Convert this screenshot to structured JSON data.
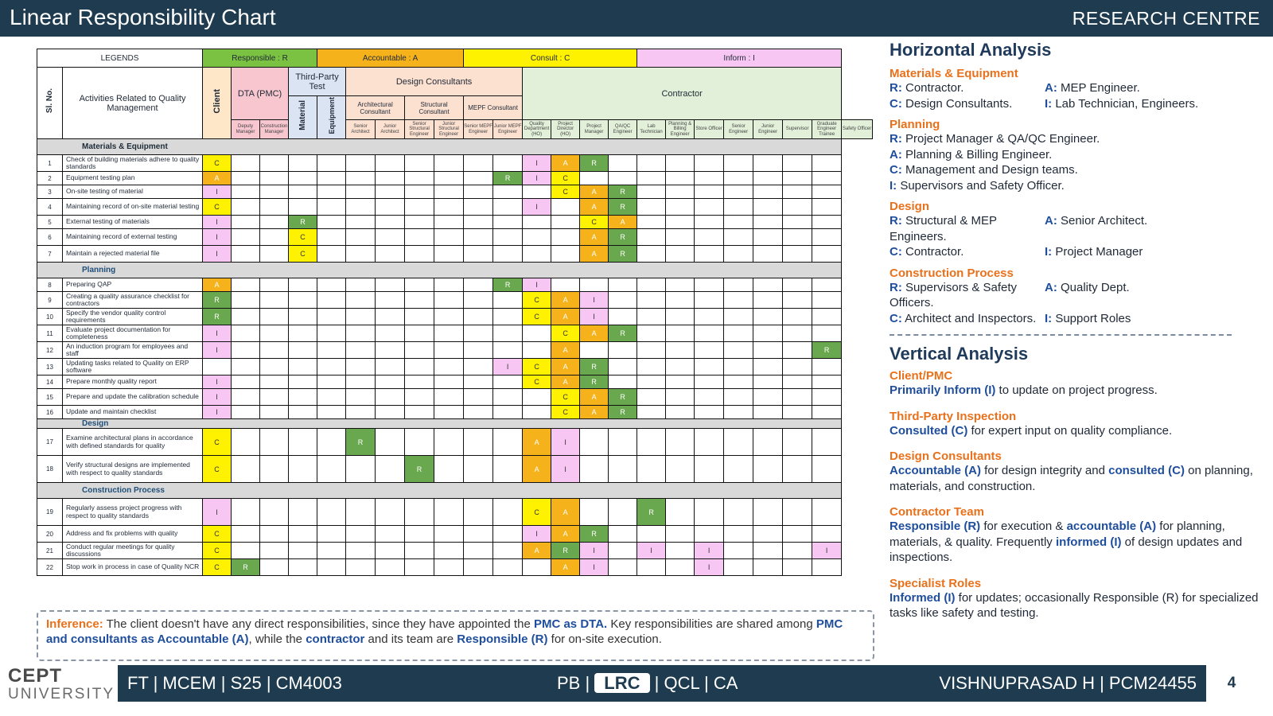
{
  "header": {
    "title": "Linear Responsibility Chart",
    "org": "RESEARCH CENTRE"
  },
  "legends": {
    "title": "LEGENDS",
    "r": "Responsible : R",
    "a": "Accountable : A",
    "c": "Consult : C",
    "i": "Inform : I"
  },
  "table_head": {
    "sl": "Sl. No.",
    "activities": "Activities Related to Quality Management",
    "client": "Client",
    "dta": "DTA (PMC)",
    "tpi": "Third-Party Test",
    "dc": "Design Consultants",
    "contractor": "Contractor",
    "tpi_material": "Material",
    "tpi_equipment": "Equipment",
    "arch": "Architectural Consultant",
    "struct": "Structural Consultant",
    "mep": "MEPF Consultant",
    "roles": [
      "Deputy Manager",
      "Construction Manager",
      "Senior Architect",
      "Junior Architect",
      "Senior Structural Engineer",
      "Junior Structural Engineer",
      "Senior MEPF Engineer",
      "Junior MEPF Engineer",
      "Quality Department (HO)",
      "Project Director (HO)",
      "Project Manager",
      "QA/QC Engineer",
      "Lab Technician",
      "Planning & Billing Engineer",
      "Store Officer",
      "Senior Engineer",
      "Junior Engineer",
      "Supervisor",
      "Graduate Engineer Trainee",
      "Safety Officer"
    ]
  },
  "rows": [
    {
      "type": "section",
      "label": "Materials & Equipment"
    },
    {
      "type": "row",
      "no": "1",
      "act": "Check of building materials adhere to quality standards",
      "cells": {
        "1": "C",
        "12": "I",
        "13": "A",
        "14": "R"
      }
    },
    {
      "type": "row",
      "no": "2",
      "act": "Equipment testing plan",
      "cells": {
        "1": "A",
        "11": "R",
        "12": "I",
        "13": "C"
      }
    },
    {
      "type": "row",
      "no": "3",
      "act": "On-site testing of material",
      "cells": {
        "1": "I",
        "13": "C",
        "14": "A",
        "15": "R"
      }
    },
    {
      "type": "row",
      "no": "4",
      "act": "Maintaining record of on-site material testing",
      "cells": {
        "1": "C",
        "12": "I",
        "14": "A",
        "15": "R"
      }
    },
    {
      "type": "row",
      "no": "5",
      "act": "External testing of materials",
      "cells": {
        "1": "I",
        "4": "R",
        "14": "C",
        "15": "A"
      }
    },
    {
      "type": "row",
      "no": "6",
      "act": "Maintaining record of external testing",
      "cells": {
        "1": "I",
        "4": "C",
        "14": "A",
        "15": "R"
      }
    },
    {
      "type": "row",
      "no": "7",
      "act": "Maintain a rejected material file",
      "cells": {
        "1": "I",
        "4": "C",
        "14": "A",
        "15": "R"
      }
    },
    {
      "type": "section",
      "label": "Planning"
    },
    {
      "type": "row",
      "no": "8",
      "act": "Preparing QAP",
      "cells": {
        "1": "A",
        "11": "R",
        "12": "I"
      }
    },
    {
      "type": "row",
      "no": "9",
      "act": "Creating a quality assurance checklist for contractors",
      "cells": {
        "1": "R",
        "12": "C",
        "13": "A",
        "14": "I"
      }
    },
    {
      "type": "row",
      "no": "10",
      "act": "Specify the vendor quality control requirements",
      "cells": {
        "1": "R",
        "12": "C",
        "13": "A",
        "14": "I"
      }
    },
    {
      "type": "row",
      "no": "11",
      "act": "Evaluate project documentation for completeness",
      "cells": {
        "1": "I",
        "13": "C",
        "14": "A",
        "15": "R"
      }
    },
    {
      "type": "row",
      "no": "12",
      "act": "An induction program for employees and staff",
      "cells": {
        "1": "I",
        "13": "A",
        "22": "R"
      }
    },
    {
      "type": "row",
      "no": "13",
      "act": "Updating tasks related to Quality on ERP software",
      "cells": {
        "11": "I",
        "12": "C",
        "13": "A",
        "14": "R"
      }
    },
    {
      "type": "row",
      "no": "14",
      "act": "Prepare monthly quality report",
      "cells": {
        "1": "I",
        "12": "C",
        "13": "A",
        "14": "R"
      }
    },
    {
      "type": "row",
      "no": "15",
      "act": "Prepare and update the calibration schedule",
      "cells": {
        "1": "I",
        "13": "C",
        "14": "A",
        "15": "R"
      }
    },
    {
      "type": "row",
      "no": "16",
      "act": "Update and maintain checklist",
      "cells": {
        "1": "I",
        "13": "C",
        "14": "A",
        "15": "R"
      }
    },
    {
      "type": "section",
      "label": "Design"
    },
    {
      "type": "row",
      "no": "17",
      "act": "Examine architectural plans in accordance with defined standards for quality",
      "cells": {
        "1": "C",
        "6": "R",
        "12": "A",
        "13": "I"
      }
    },
    {
      "type": "row",
      "no": "18",
      "act": "Verify structural designs are implemented with respect to quality standards",
      "cells": {
        "1": "C",
        "8": "R",
        "12": "A",
        "13": "I"
      }
    },
    {
      "type": "section",
      "label": "Construction Process"
    },
    {
      "type": "row",
      "no": "19",
      "act": "Regularly assess project progress with respect to quality standards",
      "cells": {
        "1": "I",
        "12": "C",
        "13": "A",
        "16": "R"
      }
    },
    {
      "type": "row",
      "no": "20",
      "act": "Address and fix problems with quality",
      "cells": {
        "1": "C",
        "12": "I",
        "13": "A",
        "14": "R"
      }
    },
    {
      "type": "row",
      "no": "21",
      "act": "Conduct regular meetings for quality discussions",
      "cells": {
        "1": "C",
        "12": "A",
        "13": "R",
        "14": "I",
        "16": "I",
        "18": "I",
        "22": "I"
      }
    },
    {
      "type": "row",
      "no": "22",
      "act": "Stop work in process in case of Quality NCR",
      "cells": {
        "1": "C",
        "2": "R",
        "13": "A",
        "14": "I",
        "18": "I"
      }
    }
  ],
  "horizontal": {
    "title": "Horizontal Analysis",
    "groups": [
      {
        "cat": "Materials & Equipment",
        "lines": [
          [
            {
              "k": "R:",
              "t": " Contractor."
            },
            {
              "k": "A:",
              "t": " MEP Engineer."
            }
          ],
          [
            {
              "k": "C:",
              "t": " Design Consultants."
            },
            {
              "k": "I:",
              "t": " Lab Technician, Engineers."
            }
          ]
        ]
      },
      {
        "cat": "Planning",
        "lines": [
          [
            {
              "k": "R:",
              "t": " Project Manager & QA/QC Engineer."
            }
          ],
          [
            {
              "k": "A:",
              "t": " Planning & Billing Engineer."
            }
          ],
          [
            {
              "k": "C:",
              "t": " Management and Design teams."
            }
          ],
          [
            {
              "k": "I:",
              "t": " Supervisors and Safety Officer."
            }
          ]
        ]
      },
      {
        "cat": "Design",
        "lines": [
          [
            {
              "k": "R:",
              "t": " Structural & MEP Engineers."
            },
            {
              "k": "A:",
              "t": " Senior Architect."
            }
          ],
          [
            {
              "k": "C:",
              "t": " Contractor."
            },
            {
              "k": "I:",
              "t": " Project Manager"
            }
          ]
        ]
      },
      {
        "cat": "Construction Process",
        "lines": [
          [
            {
              "k": "R:",
              "t": " Supervisors & Safety Officers."
            },
            {
              "k": "A:",
              "t": " Quality Dept."
            }
          ],
          [
            {
              "k": "C:",
              "t": " Architect and Inspectors."
            },
            {
              "k": "I:",
              "t": " Support Roles"
            }
          ]
        ]
      }
    ]
  },
  "vertical": {
    "title": "Vertical Analysis",
    "groups": [
      {
        "cat": "Client/PMC",
        "parts": [
          {
            "b": "Primarily Inform (I)"
          },
          {
            "t": " to update on project progress."
          }
        ]
      },
      {
        "cat": "Third-Party Inspection",
        "parts": [
          {
            "b": "Consulted (C)"
          },
          {
            "t": " for expert input on quality compliance."
          }
        ]
      },
      {
        "cat": "Design Consultants",
        "parts": [
          {
            "b": "Accountable (A)"
          },
          {
            "t": " for design integrity and "
          },
          {
            "b": "consulted (C)"
          },
          {
            "t": " on planning, materials, and construction."
          }
        ]
      },
      {
        "cat": "Contractor Team",
        "parts": [
          {
            "b": "Responsible (R)"
          },
          {
            "t": " for execution & "
          },
          {
            "b": "accountable (A)"
          },
          {
            "t": " for planning, materials, & quality. Frequently "
          },
          {
            "b": "informed (I)"
          },
          {
            "t": " of design updates and inspections."
          }
        ]
      },
      {
        "cat": "Specialist Roles",
        "parts": [
          {
            "b": "Informed (I)"
          },
          {
            "t": " for updates; occasionally Responsible (R) for specialized tasks like safety and testing."
          }
        ]
      }
    ]
  },
  "inference": {
    "label": "Inference:",
    "parts": [
      {
        "t": " The client doesn't have any direct responsibilities, since they have appointed the "
      },
      {
        "b": "PMC as DTA."
      },
      {
        "t": " Key responsibilities are shared among "
      },
      {
        "b": "PMC and consultants as Accountable (A)"
      },
      {
        "t": ", while the "
      },
      {
        "b": "contractor"
      },
      {
        "t": " and its team are "
      },
      {
        "b": "Responsible (R)"
      },
      {
        "t": " for on-site execution."
      }
    ]
  },
  "footer": {
    "logo_top": "CEPT",
    "logo_bottom": "UNIVERSITY",
    "left": "FT | MCEM | S25 | CM4003",
    "mid_pre": "PB | ",
    "mid_hl": "LRC",
    "mid_post": " | QCL | CA",
    "right": "VISHNUPRASAD H | PCM24455",
    "page": "4"
  },
  "colors": {
    "R": "#6aa84f",
    "A": "#f5b21b",
    "C": "#fff200",
    "I": "#f7c6f2",
    "bar": "#1e3b4f",
    "accent": "#e8711c",
    "key": "#1f4e9c"
  }
}
